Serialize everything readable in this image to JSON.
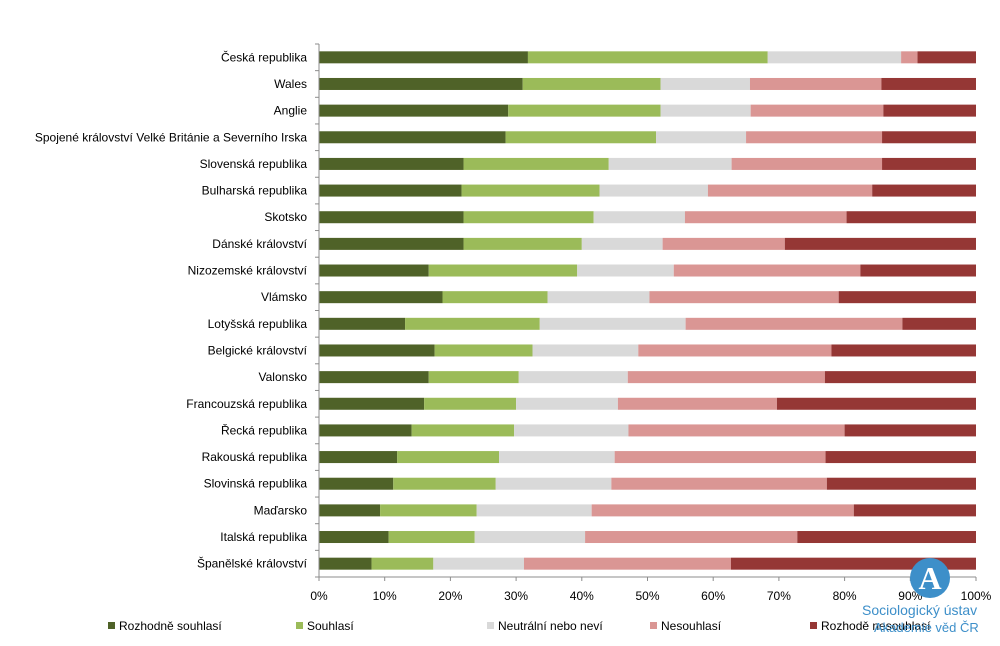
{
  "chart_data": {
    "type": "bar",
    "orientation": "horizontal",
    "stacked": "percent",
    "title": "",
    "xlabel": "",
    "ylabel": "",
    "xlim": [
      0,
      100
    ],
    "x_ticks": [
      "0%",
      "10%",
      "20%",
      "30%",
      "40%",
      "50%",
      "60%",
      "70%",
      "80%",
      "90%",
      "100%"
    ],
    "grid": false,
    "legend_position": "bottom",
    "categories": [
      "Česká republika",
      "Wales",
      "Anglie",
      "Spojené království Velké Británie a Severního Irska",
      "Slovenská republika",
      "Bulharská republika",
      "Skotsko",
      "Dánské království",
      "Nizozemské království",
      "Vlámsko",
      "Lotyšská republika",
      "Belgické království",
      "Valonsko",
      "Francouzská republika",
      "Řecká republika",
      "Rakouská republika",
      "Slovinská republika",
      "Maďarsko",
      "Italská republika",
      "Španělské království"
    ],
    "series": [
      {
        "name": "Rozhodně souhlasí",
        "color": "#4f6228",
        "values": [
          31.8,
          31.0,
          28.8,
          28.4,
          22.0,
          21.7,
          22.0,
          22.0,
          16.7,
          18.8,
          13.1,
          17.6,
          16.7,
          16.0,
          14.1,
          11.9,
          11.3,
          9.3,
          10.6,
          8.0
        ]
      },
      {
        "name": "Souhlasí",
        "color": "#9bbb59",
        "values": [
          36.5,
          21.0,
          23.2,
          22.9,
          22.1,
          21.0,
          19.8,
          18.0,
          22.6,
          16.0,
          20.5,
          14.9,
          13.7,
          14.0,
          15.6,
          15.5,
          15.6,
          14.7,
          13.1,
          9.4
        ]
      },
      {
        "name": "Neutrální nebo neví",
        "color": "#d9d9d9",
        "values": [
          20.3,
          13.6,
          13.7,
          13.7,
          18.7,
          16.5,
          13.9,
          12.3,
          14.7,
          15.5,
          22.2,
          16.1,
          16.6,
          15.5,
          17.4,
          17.6,
          17.6,
          17.5,
          16.8,
          13.8
        ]
      },
      {
        "name": "Nesouhlasí",
        "color": "#da9694",
        "values": [
          2.5,
          20.0,
          20.2,
          20.7,
          22.9,
          25.0,
          24.6,
          18.6,
          28.4,
          28.8,
          33.0,
          29.4,
          30.0,
          24.2,
          32.9,
          32.1,
          32.8,
          39.9,
          32.3,
          31.5
        ]
      },
      {
        "name": "Rozhodě nesouhlasí",
        "color": "#953735",
        "values": [
          8.9,
          14.4,
          14.1,
          14.3,
          14.3,
          15.8,
          19.7,
          29.1,
          17.6,
          20.9,
          11.2,
          22.0,
          23.0,
          30.3,
          20.0,
          22.9,
          22.7,
          18.6,
          27.2,
          37.3
        ]
      }
    ]
  },
  "logo": {
    "glyph": "A",
    "name": "Sociologický ústav",
    "subtitle": "Akademie věd ČR"
  }
}
